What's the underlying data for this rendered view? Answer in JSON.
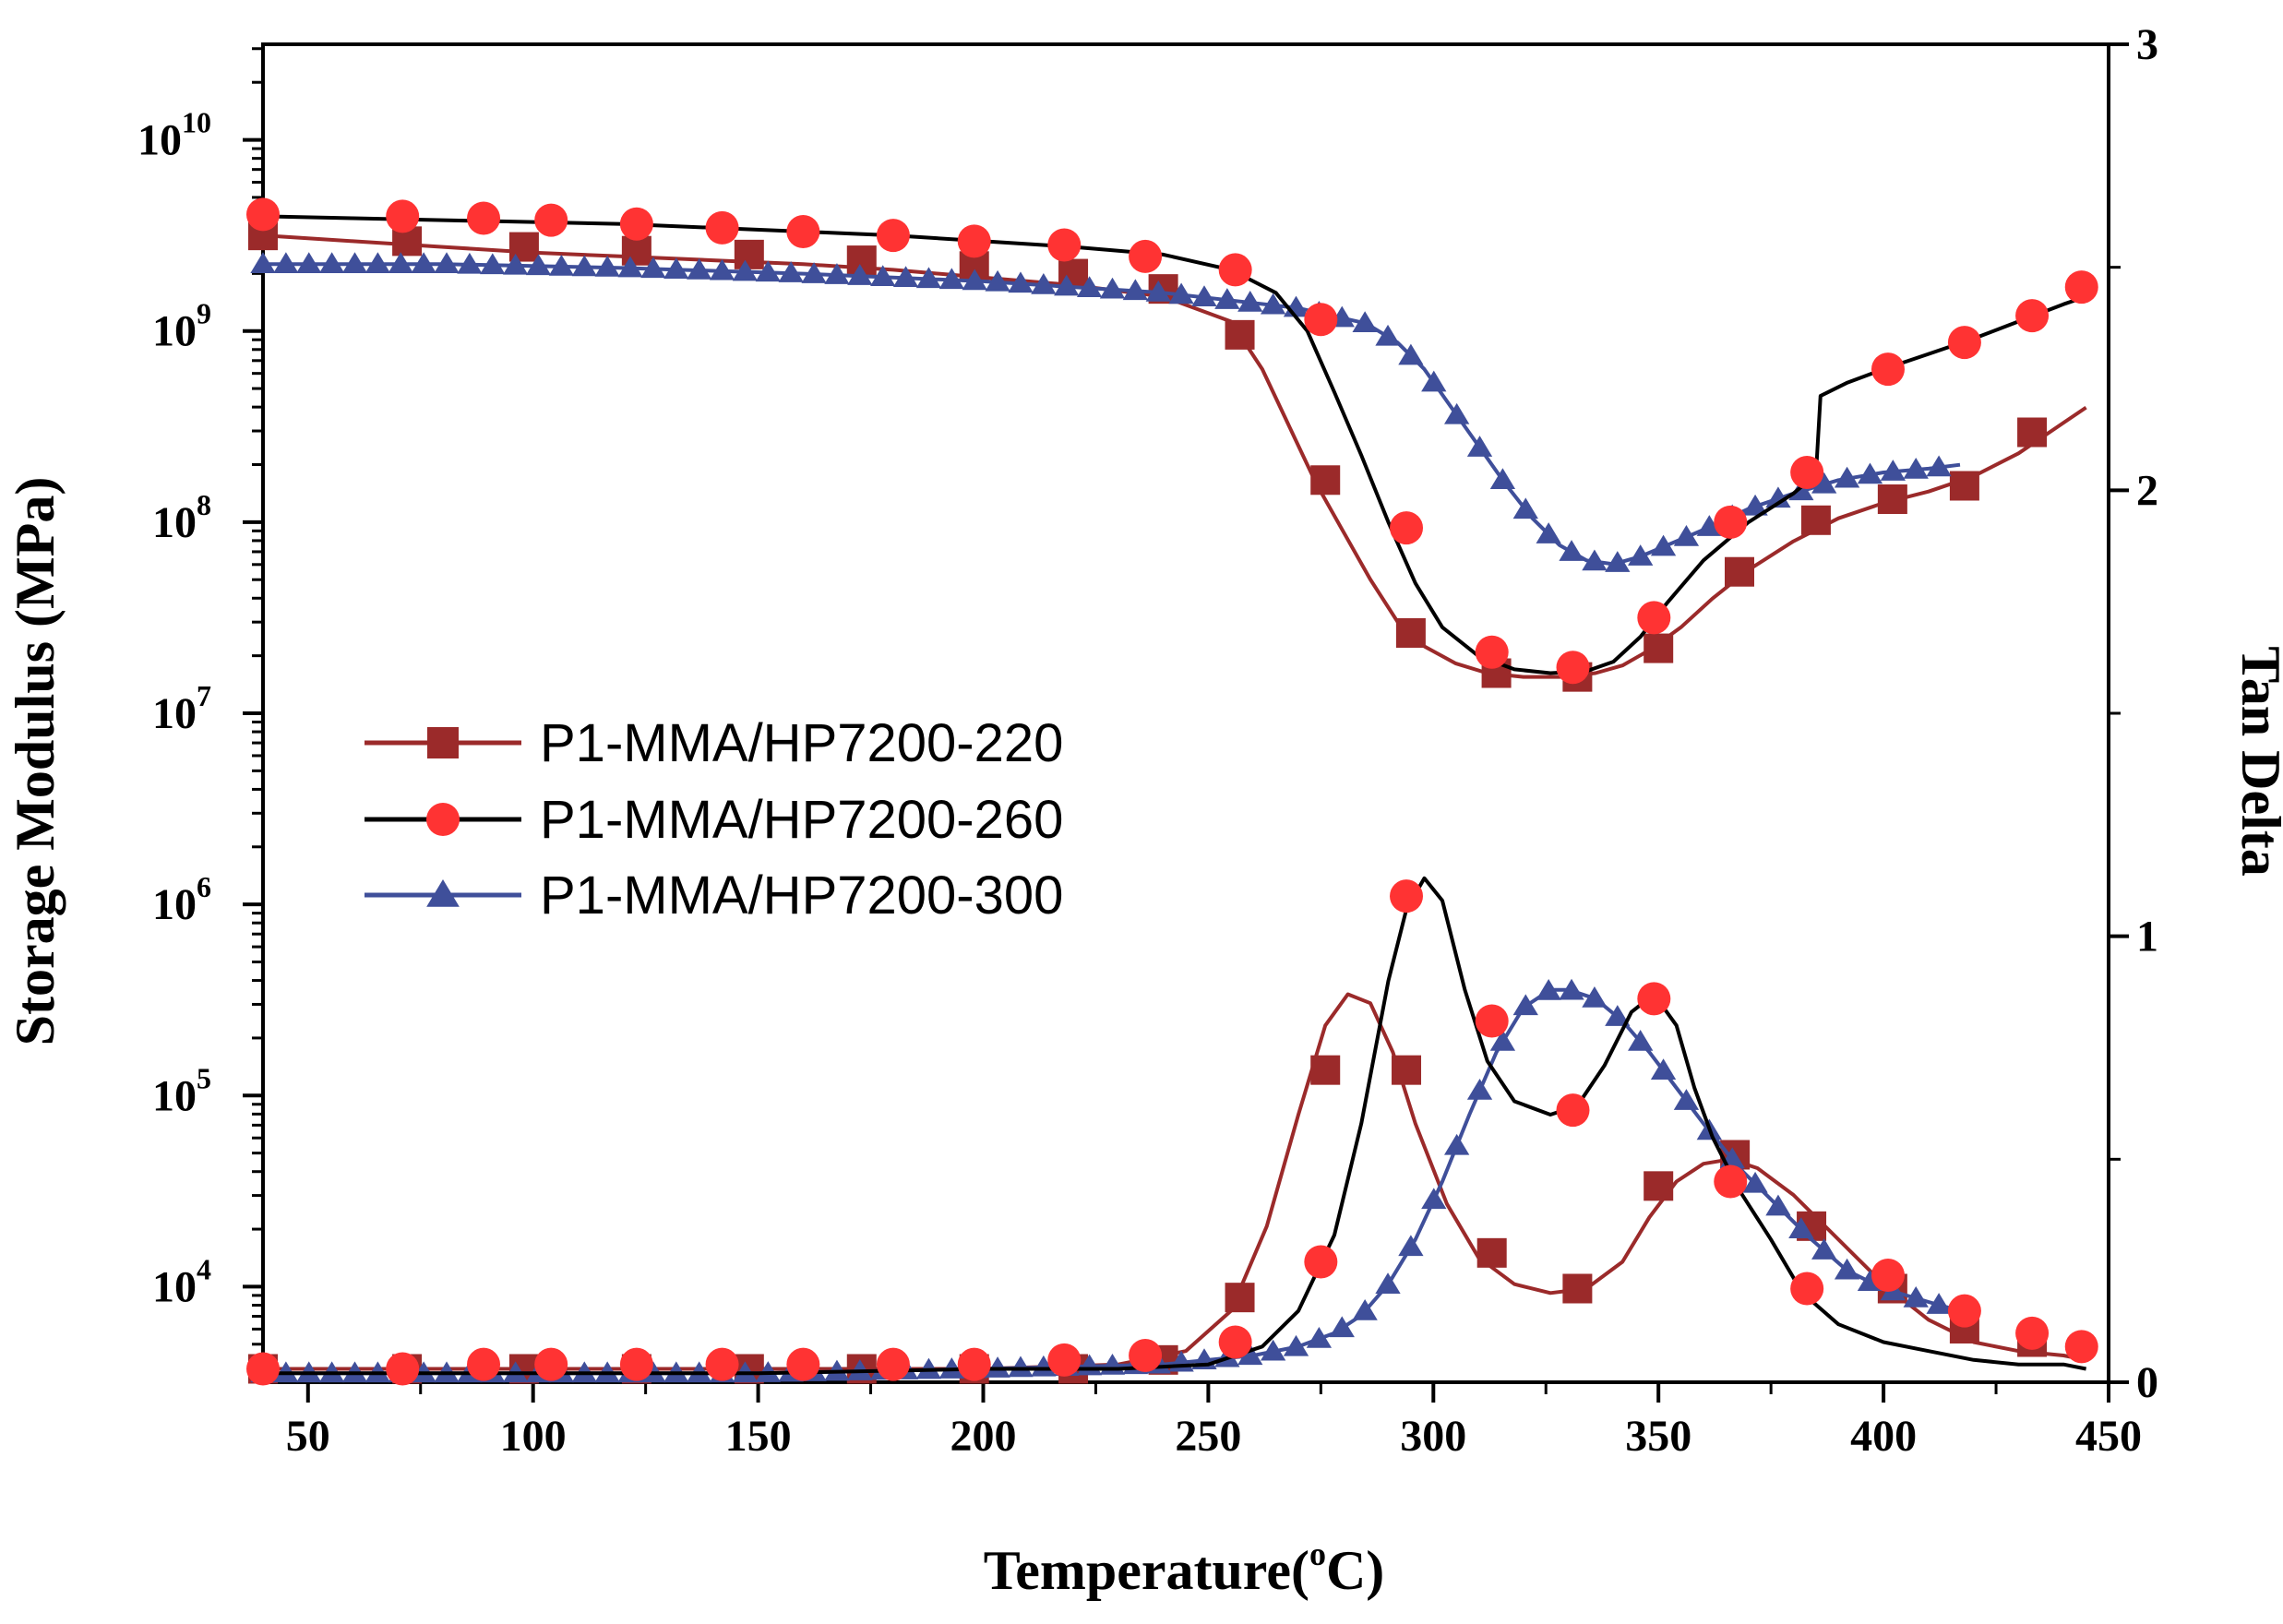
{
  "chart_data": {
    "type": "line",
    "xlabel": "Temperature(",
    "xlabel_sup": "o",
    "xlabel_end": "C)",
    "ylabel_left": "Storage Modulus (MPa)",
    "ylabel_right": "Tan Delta",
    "xlim": [
      40,
      450
    ],
    "xticks": [
      "50",
      "100",
      "150",
      "200",
      "250",
      "300",
      "350",
      "400",
      "450"
    ],
    "y_left_scale": "log",
    "y_left_range_log10": [
      3.5,
      10.5
    ],
    "y_left_ticks": [
      {
        "base": "10",
        "exp": "4"
      },
      {
        "base": "10",
        "exp": "5"
      },
      {
        "base": "10",
        "exp": "6"
      },
      {
        "base": "10",
        "exp": "7"
      },
      {
        "base": "10",
        "exp": "8"
      },
      {
        "base": "10",
        "exp": "9"
      },
      {
        "base": "10",
        "exp": "10"
      }
    ],
    "ylim_right": [
      0,
      3
    ],
    "y_right_ticks": [
      "0",
      "1",
      "2",
      "3"
    ],
    "legend": {
      "placement": "center-left"
    },
    "series": [
      {
        "name": "P1-MMA/HP7200-220",
        "color": "#9b2a2a",
        "marker": "square",
        "storage_modulus": {
          "x": [
            40,
            60,
            80,
            100,
            120,
            140,
            160,
            180,
            200,
            220,
            240,
            255,
            262,
            268,
            274,
            280,
            286,
            292,
            298,
            305,
            312,
            320,
            328,
            336,
            342,
            348,
            355,
            362,
            370,
            380,
            390,
            400,
            410,
            420,
            430,
            440,
            445
          ],
          "log10_y": [
            9.5,
            9.47,
            9.44,
            9.41,
            9.39,
            9.37,
            9.35,
            9.32,
            9.28,
            9.24,
            9.18,
            9.05,
            8.8,
            8.5,
            8.2,
            7.95,
            7.7,
            7.48,
            7.35,
            7.26,
            7.21,
            7.19,
            7.19,
            7.21,
            7.25,
            7.33,
            7.45,
            7.6,
            7.75,
            7.9,
            8.02,
            8.1,
            8.16,
            8.24,
            8.36,
            8.52,
            8.6
          ],
          "marker_x": [
            40,
            72,
            98,
            123,
            148,
            173,
            198,
            220,
            240,
            257,
            276,
            295,
            314,
            332,
            350,
            368,
            385,
            402,
            418,
            433
          ],
          "marker_log10_y": [
            9.5,
            9.47,
            9.44,
            9.42,
            9.4,
            9.37,
            9.34,
            9.3,
            9.22,
            8.98,
            8.22,
            7.42,
            7.21,
            7.19,
            7.34,
            7.74,
            8.01,
            8.12,
            8.19,
            8.47
          ]
        },
        "tan_delta": {
          "x": [
            40,
            100,
            150,
            200,
            230,
            245,
            255,
            263,
            270,
            276,
            281,
            286,
            291,
            296,
            303,
            310,
            318,
            326,
            334,
            342,
            348,
            354,
            360,
            366,
            372,
            380,
            390,
            400,
            410,
            420,
            430,
            440,
            445
          ],
          "y": [
            0.03,
            0.03,
            0.03,
            0.03,
            0.04,
            0.07,
            0.16,
            0.35,
            0.6,
            0.8,
            0.87,
            0.85,
            0.74,
            0.58,
            0.4,
            0.28,
            0.22,
            0.2,
            0.21,
            0.27,
            0.37,
            0.45,
            0.49,
            0.5,
            0.48,
            0.42,
            0.32,
            0.22,
            0.14,
            0.09,
            0.07,
            0.06,
            0.05
          ],
          "marker_x": [
            40,
            72,
            98,
            123,
            148,
            173,
            198,
            220,
            240,
            257,
            276,
            294,
            313,
            332,
            350,
            367,
            384,
            402,
            418,
            433
          ],
          "marker_y": [
            0.03,
            0.03,
            0.03,
            0.03,
            0.03,
            0.03,
            0.03,
            0.03,
            0.05,
            0.19,
            0.7,
            0.7,
            0.29,
            0.21,
            0.44,
            0.51,
            0.35,
            0.21,
            0.12,
            0.09
          ]
        }
      },
      {
        "name": "P1-MMA/HP7200-260",
        "color": "#000000",
        "marker": "circle",
        "marker_color": "#ff3333",
        "storage_modulus": {
          "x": [
            40,
            60,
            80,
            100,
            120,
            140,
            160,
            180,
            200,
            220,
            240,
            255,
            265,
            272,
            278,
            284,
            290,
            296,
            302,
            310,
            318,
            326,
            334,
            340,
            346,
            352,
            360,
            370,
            380,
            385,
            386,
            392,
            400,
            410,
            420,
            430,
            440,
            445
          ],
          "log10_y": [
            9.6,
            9.59,
            9.58,
            9.57,
            9.56,
            9.54,
            9.52,
            9.5,
            9.47,
            9.44,
            9.4,
            9.32,
            9.2,
            9.0,
            8.68,
            8.35,
            8.0,
            7.68,
            7.45,
            7.3,
            7.23,
            7.21,
            7.22,
            7.27,
            7.4,
            7.58,
            7.8,
            8.0,
            8.15,
            8.25,
            8.66,
            8.73,
            8.8,
            8.88,
            8.96,
            9.05,
            9.14,
            9.18
          ],
          "marker_x": [
            40,
            71,
            89,
            104,
            123,
            142,
            160,
            180,
            198,
            218,
            236,
            256,
            275,
            294,
            313,
            331,
            349,
            366,
            383,
            401,
            418,
            433,
            444
          ],
          "marker_log10_y": [
            9.61,
            9.6,
            9.59,
            9.58,
            9.56,
            9.54,
            9.52,
            9.5,
            9.47,
            9.45,
            9.39,
            9.32,
            9.06,
            7.97,
            7.32,
            7.24,
            7.5,
            8.0,
            8.26,
            8.8,
            8.94,
            9.08,
            9.23
          ]
        },
        "tan_delta": {
          "x": [
            40,
            100,
            150,
            200,
            230,
            250,
            262,
            270,
            278,
            284,
            290,
            294,
            298,
            302,
            307,
            312,
            318,
            326,
            332,
            338,
            344,
            349,
            354,
            358,
            362,
            368,
            375,
            382,
            390,
            400,
            410,
            420,
            430,
            440,
            445
          ],
          "y": [
            0.02,
            0.02,
            0.02,
            0.03,
            0.03,
            0.04,
            0.08,
            0.16,
            0.33,
            0.58,
            0.9,
            1.06,
            1.13,
            1.08,
            0.88,
            0.72,
            0.63,
            0.6,
            0.62,
            0.71,
            0.83,
            0.87,
            0.8,
            0.66,
            0.55,
            0.43,
            0.32,
            0.2,
            0.13,
            0.09,
            0.07,
            0.05,
            0.04,
            0.04,
            0.03
          ],
          "marker_x": [
            40,
            71,
            89,
            104,
            123,
            142,
            160,
            180,
            198,
            218,
            236,
            256,
            275,
            294,
            313,
            331,
            349,
            366,
            383,
            401,
            418,
            433,
            444
          ],
          "marker_y": [
            0.03,
            0.03,
            0.04,
            0.04,
            0.04,
            0.04,
            0.04,
            0.04,
            0.04,
            0.05,
            0.06,
            0.09,
            0.27,
            1.09,
            0.81,
            0.61,
            0.86,
            0.45,
            0.21,
            0.24,
            0.16,
            0.11,
            0.08
          ]
        }
      },
      {
        "name": "P1-MMA/HP7200-300",
        "color": "#3f4f9a",
        "marker": "triangle",
        "storage_modulus": {
          "x": [
            40,
            80,
            120,
            160,
            200,
            240,
            270,
            285,
            292,
            298,
            304,
            310,
            316,
            322,
            328,
            334,
            340,
            346,
            352,
            360,
            370,
            380,
            390,
            400,
            410,
            417
          ],
          "log10_y": [
            9.35,
            9.35,
            9.33,
            9.3,
            9.26,
            9.2,
            9.12,
            9.04,
            8.94,
            8.8,
            8.6,
            8.4,
            8.2,
            8.02,
            7.88,
            7.8,
            7.78,
            7.82,
            7.88,
            7.96,
            8.07,
            8.15,
            8.22,
            8.26,
            8.28,
            8.3
          ],
          "marker_x_start": 40,
          "marker_x_end": 417,
          "marker_x_step": 5.1
        },
        "tan_delta": {
          "x": [
            40,
            100,
            150,
            200,
            240,
            260,
            270,
            278,
            284,
            290,
            296,
            302,
            308,
            314,
            320,
            326,
            330,
            336,
            342,
            348,
            354,
            360,
            368,
            376,
            384,
            392,
            400,
            410,
            417
          ],
          "y": [
            0.02,
            0.02,
            0.02,
            0.03,
            0.04,
            0.06,
            0.08,
            0.11,
            0.15,
            0.22,
            0.32,
            0.45,
            0.6,
            0.74,
            0.84,
            0.88,
            0.88,
            0.86,
            0.81,
            0.74,
            0.66,
            0.58,
            0.48,
            0.4,
            0.32,
            0.25,
            0.21,
            0.18,
            0.16
          ],
          "marker_x_start": 40,
          "marker_x_end": 417,
          "marker_x_step": 5.1
        }
      }
    ]
  }
}
